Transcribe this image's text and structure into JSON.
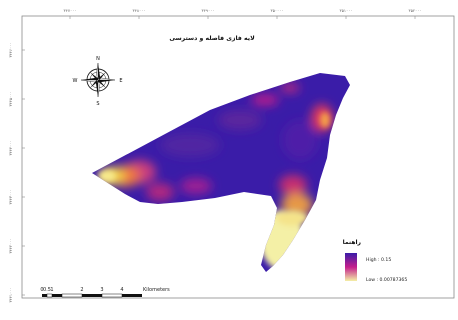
{
  "map": {
    "title": "لایه فازی فاصله و دسترسی",
    "x_ticks": [
      "۳۴۷۰۰۰",
      "۳۴۸۰۰۰",
      "۳۴۹۰۰۰",
      "۳۵۰۰۰۰",
      "۳۵۱۰۰۰",
      "۳۵۲۰۰۰"
    ],
    "y_ticks": [
      "۳۴۴۶۰۰۰",
      "۳۴۴۵۰۰۰",
      "۳۴۴۴۰۰۰",
      "۳۴۴۳۰۰۰",
      "۳۴۴۲۰۰۰",
      "۳۴۴۱۰۰۰"
    ],
    "compass": {
      "n": "N",
      "s": "S",
      "e": "E",
      "w": "W"
    },
    "legend": {
      "title": "راهنما",
      "high_label": "High : 0.15",
      "low_label": "Low : 0.00787365",
      "color_high": "#3a1ca8",
      "color_mid": "#c41e8c",
      "color_low": "#f4f0a6"
    },
    "scale_bar": {
      "labels": [
        "0",
        "0.5",
        "1",
        "2",
        "3",
        "4"
      ],
      "unit": "Kilometers"
    }
  }
}
